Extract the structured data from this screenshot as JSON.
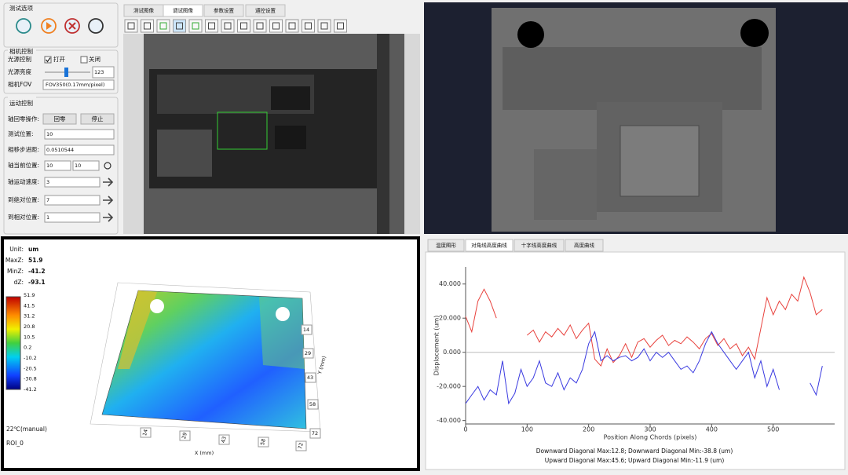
{
  "left_panel": {
    "test_options": {
      "title": "测试选项"
    },
    "camera": {
      "title": "相机控制",
      "light_control": "光源控制",
      "on": "打开",
      "off": "关闭",
      "brightness": "光源亮度",
      "brightness_value": 123,
      "fov_label": "相机FOV",
      "fov_value": "FOV350(0.17mm/pixel)"
    },
    "motion": {
      "title": "运动控制",
      "home_label": "轴回零操作:",
      "home_button": "回零",
      "stop_button": "停止",
      "rows": [
        {
          "label": "测试位置:",
          "value": "10"
        },
        {
          "label": "相移步进距:",
          "value": "0.0510544"
        },
        {
          "label": "轴当前位置:",
          "value": "10",
          "value2": "10"
        },
        {
          "label": "轴运动速度:",
          "value": "3"
        },
        {
          "label": "到绝对位置:",
          "value": "7"
        },
        {
          "label": "到相对位置:",
          "value": "1"
        }
      ]
    }
  },
  "image_tabs": [
    "测试图像",
    "调试图像",
    "参数设置",
    "通控设置"
  ],
  "surface_view": {
    "unit_label": "Unit:",
    "unit": "um",
    "max_label": "MaxZ:",
    "max": 51.9,
    "min_label": "MinZ:",
    "min": -41.2,
    "dz_label": "dZ:",
    "dz": -93.1,
    "colorbar_ticks": [
      51.9,
      41.5,
      31.2,
      20.8,
      10.5,
      0.2,
      -10.2,
      -20.5,
      -30.8,
      -41.2
    ],
    "temperature": "22℃(manual)",
    "roi": "ROI_0",
    "x_label": "X (mm)",
    "x_ticks": [
      14,
      29,
      43,
      58,
      72
    ],
    "y_label": "Y (mm)",
    "y_ticks": [
      14,
      29,
      43,
      58,
      72
    ]
  },
  "profile_tabs": [
    "温度图形",
    "对角线高度曲线",
    "十字线高度曲线",
    "高度曲线"
  ],
  "chart_data": {
    "type": "line",
    "x_label": "Position Along Chords (pixels)",
    "y_label": "Displacement (um)",
    "x": [
      0,
      10,
      20,
      30,
      40,
      50,
      60,
      70,
      80,
      90,
      100,
      110,
      120,
      130,
      140,
      150,
      160,
      170,
      180,
      190,
      200,
      210,
      220,
      230,
      240,
      250,
      260,
      270,
      280,
      290,
      300,
      310,
      320,
      330,
      340,
      350,
      360,
      370,
      380,
      390,
      400,
      410,
      420,
      430,
      440,
      450,
      460,
      470,
      480,
      490,
      500,
      510,
      520,
      530,
      540,
      550,
      560,
      570,
      580
    ],
    "series": [
      {
        "color": "#e8413c",
        "values": [
          21,
          12,
          30,
          37,
          30,
          20,
          null,
          null,
          null,
          null,
          10,
          13,
          6,
          12,
          9,
          14,
          10,
          16,
          8,
          13,
          17,
          -4,
          -8,
          2,
          -6,
          -2,
          5,
          -3,
          6,
          8,
          3,
          7,
          10,
          4,
          7,
          5,
          9,
          6,
          2,
          8,
          11,
          4,
          8,
          2,
          5,
          -2,
          3,
          -4,
          14,
          32,
          22,
          30,
          25,
          34,
          30,
          44,
          35,
          22,
          25
        ]
      },
      {
        "color": "#3a3ae0",
        "values": [
          -30,
          -25,
          -20,
          -28,
          -22,
          -25,
          -5,
          -30,
          -24,
          -10,
          -20,
          -15,
          -5,
          -18,
          -20,
          -12,
          -22,
          -15,
          -18,
          -10,
          5,
          12,
          -5,
          -2,
          -5,
          -3,
          -2,
          -5,
          -3,
          2,
          -5,
          0,
          -3,
          0,
          -5,
          -10,
          -8,
          -12,
          -5,
          5,
          12,
          5,
          0,
          -5,
          -10,
          -5,
          0,
          -15,
          -5,
          -20,
          -10,
          -22,
          null,
          null,
          null,
          null,
          -18,
          -25,
          -8
        ]
      }
    ],
    "xlim": [
      0,
      600
    ],
    "xticks": [
      0,
      100,
      200,
      300,
      400,
      500
    ],
    "ylim": [
      -42,
      50
    ],
    "yticks": [
      {
        "value": -40,
        "label": "-40.000"
      },
      {
        "value": -20,
        "label": "-20.000"
      },
      {
        "value": 0,
        "label": "0.000"
      },
      {
        "value": 20,
        "label": "20.000"
      },
      {
        "value": 40,
        "label": "40.000"
      }
    ],
    "grid": false
  },
  "profile_summary": [
    "Downward Diagonal Max:12.8; Downward Diagonal Min:-38.8 (um)",
    "Upward Diagonal Max:45.6; Upward Diagonal Min:-11.9 (um)"
  ]
}
